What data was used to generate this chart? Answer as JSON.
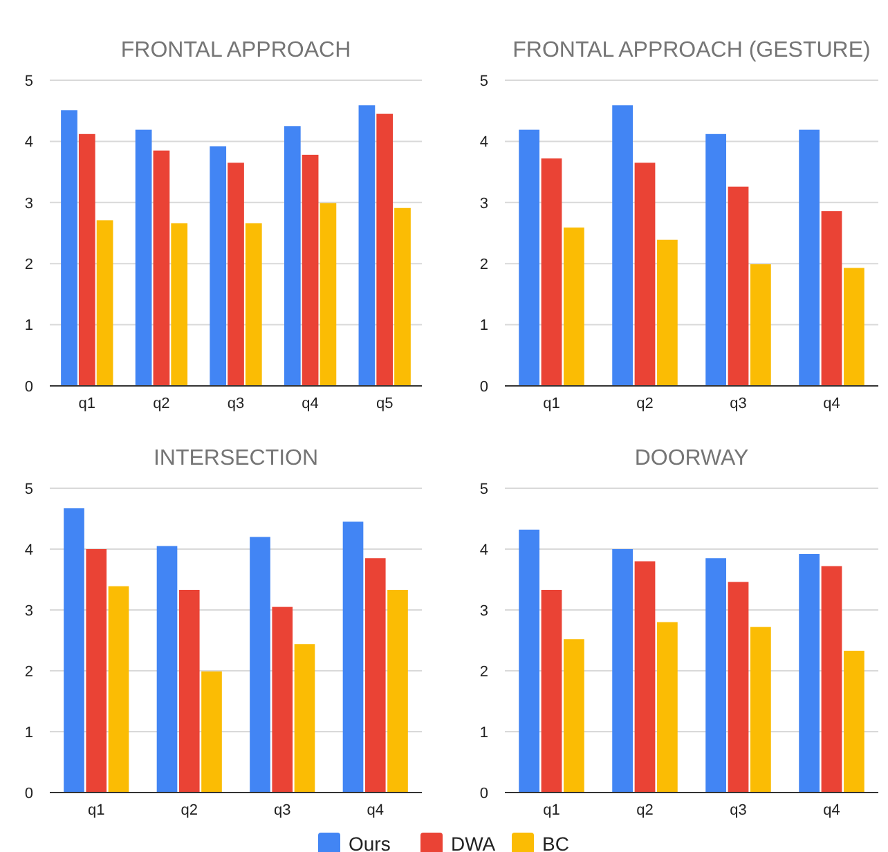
{
  "chart_data": [
    {
      "type": "bar",
      "title": "FRONTAL APPROACH",
      "categories": [
        "q1",
        "q2",
        "q3",
        "q4",
        "q5"
      ],
      "ylim": [
        0,
        5
      ],
      "yticks": [
        0,
        1,
        2,
        3,
        4,
        5
      ],
      "grid": "y",
      "legend": "bottom",
      "series": [
        {
          "name": "Ours",
          "color": "#4285f4",
          "values": [
            4.51,
            4.19,
            3.92,
            4.25,
            4.59
          ]
        },
        {
          "name": "DWA",
          "color": "#ea4335",
          "values": [
            4.12,
            3.85,
            3.65,
            3.78,
            4.45
          ]
        },
        {
          "name": "BC",
          "color": "#fbbc04",
          "values": [
            2.71,
            2.66,
            2.66,
            2.99,
            2.91
          ]
        }
      ]
    },
    {
      "type": "bar",
      "title": "FRONTAL APPROACH (GESTURE)",
      "categories": [
        "q1",
        "q2",
        "q3",
        "q4"
      ],
      "ylim": [
        0,
        5
      ],
      "yticks": [
        0,
        1,
        2,
        3,
        4,
        5
      ],
      "grid": "y",
      "legend": "bottom",
      "series": [
        {
          "name": "Ours",
          "color": "#4285f4",
          "values": [
            4.19,
            4.59,
            4.12,
            4.19
          ]
        },
        {
          "name": "DWA",
          "color": "#ea4335",
          "values": [
            3.72,
            3.65,
            3.26,
            2.86
          ]
        },
        {
          "name": "BC",
          "color": "#fbbc04",
          "values": [
            2.59,
            2.39,
            1.99,
            1.93
          ]
        }
      ]
    },
    {
      "type": "bar",
      "title": "INTERSECTION",
      "categories": [
        "q1",
        "q2",
        "q3",
        "q4"
      ],
      "ylim": [
        0,
        5
      ],
      "yticks": [
        0,
        1,
        2,
        3,
        4,
        5
      ],
      "grid": "y",
      "legend": "bottom",
      "series": [
        {
          "name": "Ours",
          "color": "#4285f4",
          "values": [
            4.67,
            4.05,
            4.2,
            4.45
          ]
        },
        {
          "name": "DWA",
          "color": "#ea4335",
          "values": [
            4.0,
            3.33,
            3.05,
            3.85
          ]
        },
        {
          "name": "BC",
          "color": "#fbbc04",
          "values": [
            3.39,
            1.99,
            2.44,
            3.33
          ]
        }
      ]
    },
    {
      "type": "bar",
      "title": "DOORWAY",
      "categories": [
        "q1",
        "q2",
        "q3",
        "q4"
      ],
      "ylim": [
        0,
        5
      ],
      "yticks": [
        0,
        1,
        2,
        3,
        4,
        5
      ],
      "grid": "y",
      "legend": "bottom",
      "series": [
        {
          "name": "Ours",
          "color": "#4285f4",
          "values": [
            4.32,
            4.0,
            3.85,
            3.92
          ]
        },
        {
          "name": "DWA",
          "color": "#ea4335",
          "values": [
            3.33,
            3.8,
            3.46,
            3.72
          ]
        },
        {
          "name": "BC",
          "color": "#fbbc04",
          "values": [
            2.52,
            2.8,
            2.72,
            2.33
          ]
        }
      ]
    }
  ]
}
